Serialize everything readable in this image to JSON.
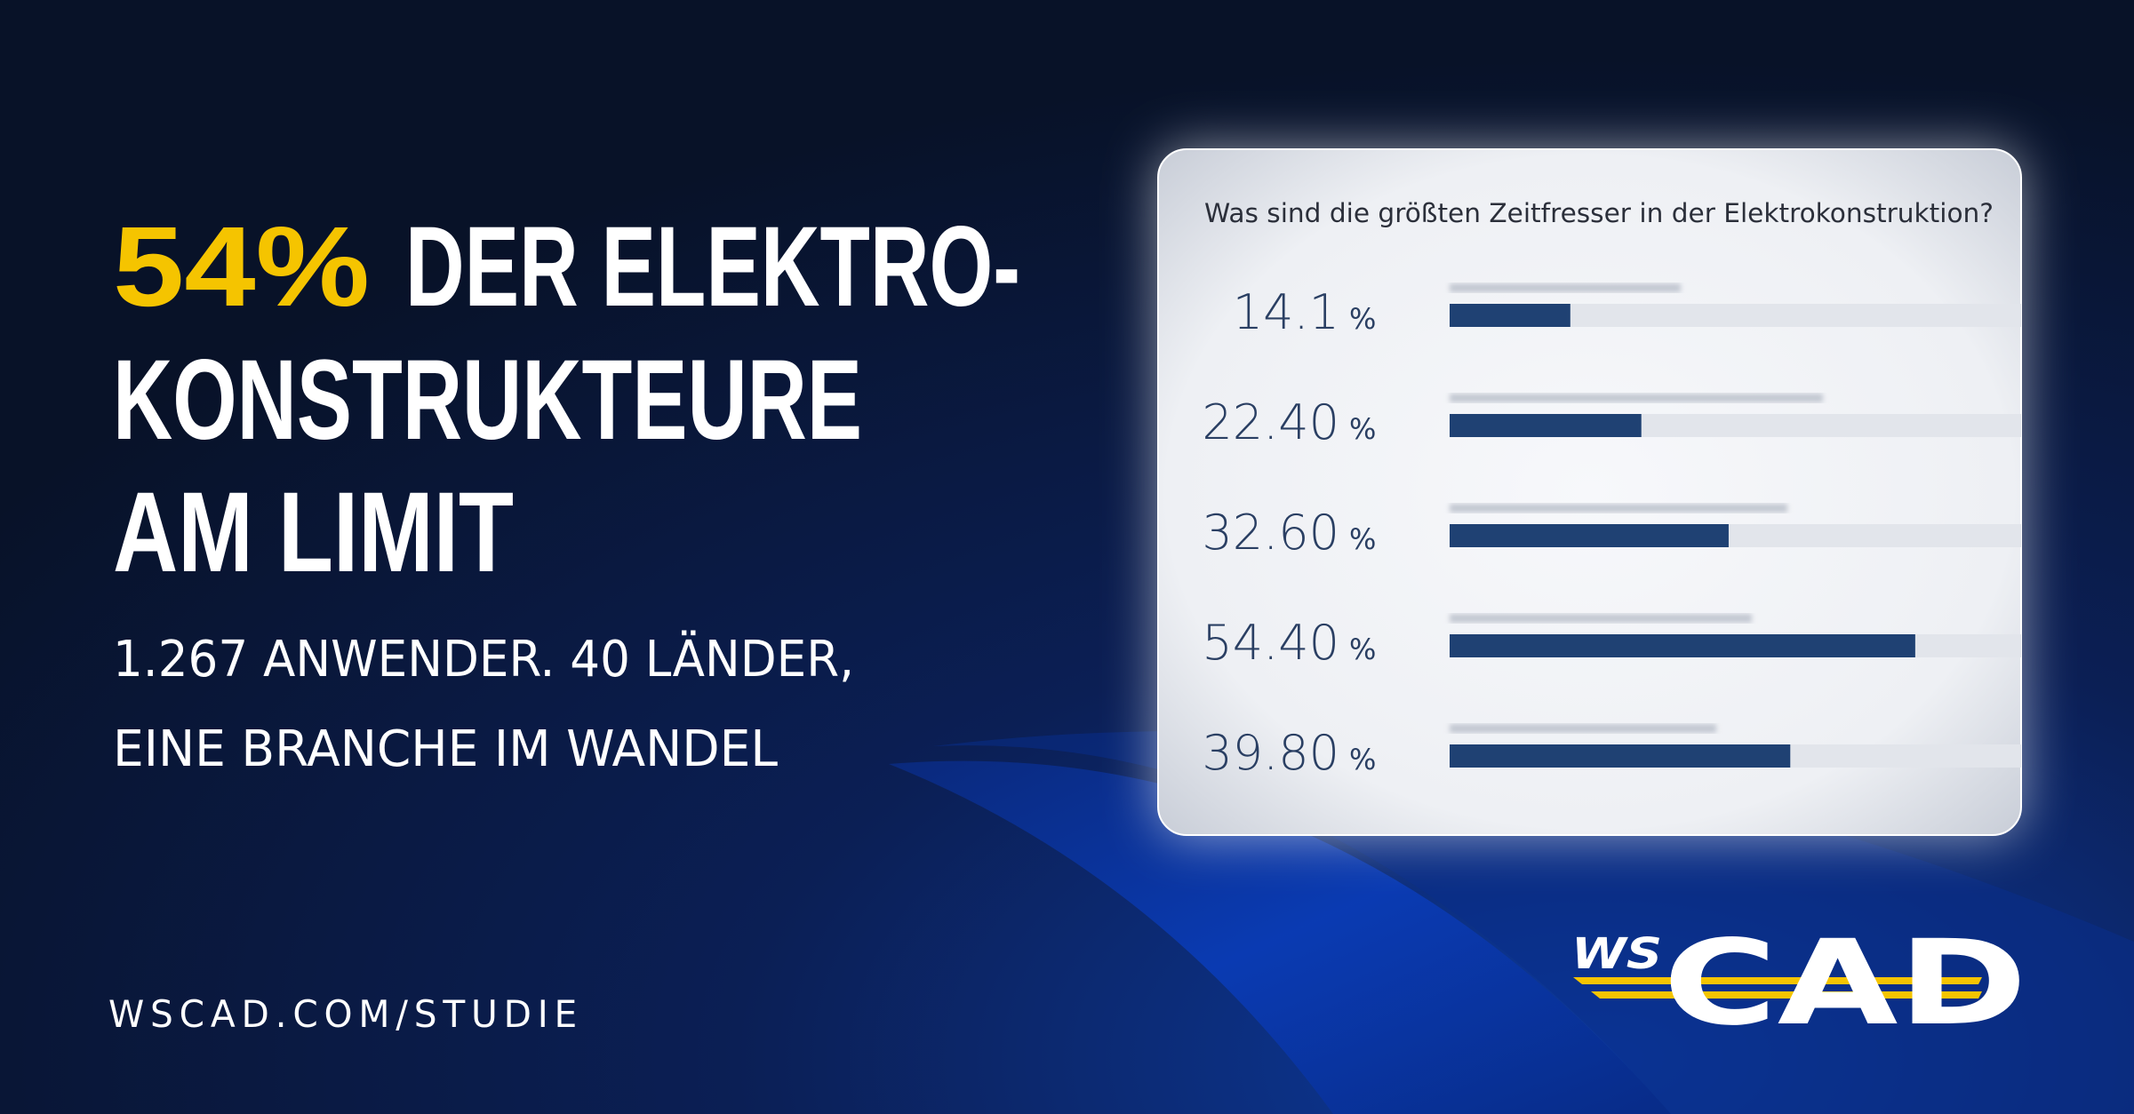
{
  "headline": {
    "highlight": "54%",
    "lines": [
      "DER ELEKTRO-",
      "KONSTRUKTEURE",
      "AM LIMIT"
    ]
  },
  "subline": [
    "1.267 ANWENDER. 40 LÄNDER,",
    "EINE BRANCHE IM WANDEL"
  ],
  "url": "WSCAD.COM/STUDIE",
  "logo": {
    "small": "WS",
    "large": "CAD"
  },
  "chart_data": {
    "type": "bar",
    "orientation": "horizontal",
    "title": "Was sind die größten Zeitfresser in der Elektrokonstruktion?",
    "categories": [
      null,
      null,
      null,
      null,
      null
    ],
    "values": [
      14.1,
      22.4,
      32.6,
      54.4,
      39.8
    ],
    "value_labels": [
      "14.1",
      "22.40",
      "32.60",
      "54.40",
      "39.80"
    ],
    "value_suffix": "%",
    "color": "#1f4173",
    "xlim": [
      0,
      100
    ]
  }
}
